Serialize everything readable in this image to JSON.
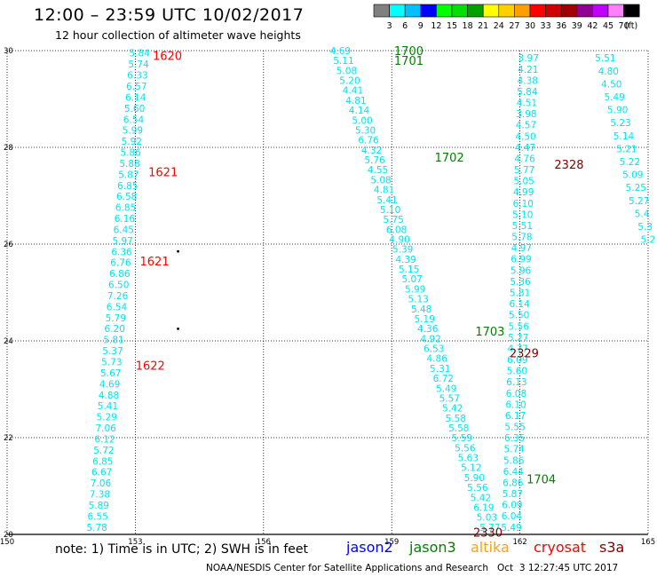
{
  "title": "12:00 – 23:59 UTC 10/02/2017",
  "subtitle": "12 hour collection of altimeter wave heights",
  "note": "note: 1) Time is in UTC; 2) SWH is in feet",
  "credit": "NOAA/NESDIS Center for Satellite Applications and Research   Oct  3 12:27:45 UTC 2017",
  "satellites": [
    {
      "name": "jason2",
      "color": "#0000ff"
    },
    {
      "name": "jason3",
      "color": "#008000"
    },
    {
      "name": "altika",
      "color": "#ffa500"
    },
    {
      "name": "cryosat",
      "color": "#ff0000"
    },
    {
      "name": "s3a",
      "color": "#800000"
    }
  ],
  "color_scale": {
    "unit": "(ft)",
    "labels": [
      "3",
      "6",
      "9",
      "12",
      "15",
      "18",
      "21",
      "24",
      "27",
      "30",
      "33",
      "36",
      "39",
      "42",
      "45",
      "70"
    ],
    "colors": [
      "#808080",
      "#00ffff",
      "#00c0ff",
      "#0000ff",
      "#00ff00",
      "#00e000",
      "#00a000",
      "#ffff00",
      "#ffd000",
      "#ffa000",
      "#ff0000",
      "#d00000",
      "#a00000",
      "#900090",
      "#c000ff",
      "#ff80ff",
      "#000000"
    ]
  },
  "chart_data": {
    "type": "scatter",
    "x_range": [
      150,
      165
    ],
    "y_range": [
      20,
      30
    ],
    "x_ticks": [
      "150",
      "153",
      "156",
      "159",
      "162",
      "165"
    ],
    "y_ticks": [
      "30",
      "28",
      "26",
      "24",
      "22",
      "20"
    ],
    "grid": true,
    "text_color": "#00e5ee",
    "tracks": [
      {
        "values": [
          "5.84",
          "5.74",
          "6.33",
          "6.57",
          "6.14",
          "5.60",
          "6.54",
          "5.99",
          "5.92",
          "5.86",
          "5.88",
          "5.87",
          "6.85",
          "6.58",
          "6.85",
          "6.16",
          "6.45",
          "5.97",
          "6.36",
          "6.76",
          "6.86",
          "6.50",
          "7.26",
          "6.54",
          "5.79",
          "6.20",
          "5.81",
          "5.37",
          "5.73",
          "5.67",
          "4.69",
          "4.88",
          "5.41",
          "5.29",
          "7.06",
          "6.12",
          "5.72",
          "6.85",
          "6.67",
          "7.06",
          "7.38",
          "5.89",
          "6.55",
          "5.78"
        ],
        "x_top": 153.1,
        "x_bottom": 152.1,
        "y_top": 29.95,
        "y_bottom": 20.15
      },
      {
        "values": [
          "4.69",
          "5.11",
          "5.08",
          "5.20",
          "4.41",
          "4.81",
          "4.14",
          "5.00",
          "5.30",
          "6.76",
          "4.32",
          "5.76",
          "4.55",
          "5.08",
          "4.81",
          "5.41",
          "5.10",
          "5.75",
          "6.08",
          "4.90",
          "5.39",
          "4.39",
          "5.15",
          "5.07",
          "5.99",
          "5.13",
          "5.48",
          "5.19",
          "4.36",
          "4.92",
          "6.53",
          "4.86",
          "5.31",
          "6.72",
          "5.49",
          "5.57",
          "5.42",
          "5.58",
          "5.58",
          "5.59",
          "5.56",
          "5.63",
          "5.12",
          "5.90",
          "5.56",
          "5.42",
          "6.19",
          "5.03",
          "5.77"
        ],
        "x_top": 157.8,
        "x_bottom": 161.3,
        "y_top": 30.0,
        "y_bottom": 20.15
      },
      {
        "values": [
          "3.97",
          "4.21",
          "4.38",
          "5.84",
          "4.51",
          "3.98",
          "4.57",
          "4.50",
          "4.47",
          "4.76",
          "5.77",
          "5.05",
          "4.99",
          "6.10",
          "5.10",
          "5.51",
          "5.78",
          "4.97",
          "6.99",
          "5.96",
          "5.36",
          "5.81",
          "6.14",
          "5.50",
          "5.56",
          "5.27",
          "4.77",
          "6.09",
          "5.60",
          "6.13",
          "6.08",
          "6.10",
          "6.17",
          "5.55",
          "6.35",
          "5.74",
          "5.86",
          "6.44",
          "6.86",
          "5.87",
          "6.09",
          "6.04",
          "5.49"
        ],
        "x_top": 162.2,
        "x_bottom": 161.8,
        "y_top": 29.85,
        "y_bottom": 20.15
      },
      {
        "values": [
          "5.51",
          "4.80",
          "4.50",
          "5.49",
          "5.90",
          "5.23",
          "5.14",
          "5.21",
          "5.22",
          "5.09",
          "5.25",
          "5.27",
          "5.4",
          "5.3",
          "5.2"
        ],
        "x_top": 164.0,
        "x_bottom": 165.0,
        "y_top": 29.85,
        "y_bottom": 26.1
      }
    ],
    "time_labels": [
      {
        "text": "1620",
        "x": 153.75,
        "y": 29.9,
        "color": "#ff0000"
      },
      {
        "text": "1621",
        "x": 153.65,
        "y": 27.5,
        "color": "#ff0000"
      },
      {
        "text": "1621",
        "x": 153.45,
        "y": 25.65,
        "color": "#ff0000"
      },
      {
        "text": "1622",
        "x": 153.35,
        "y": 23.5,
        "color": "#ff0000"
      },
      {
        "text": "1700",
        "x": 159.4,
        "y": 30.0,
        "color": "#008000"
      },
      {
        "text": "1701",
        "x": 159.4,
        "y": 29.8,
        "color": "#008000"
      },
      {
        "text": "1702",
        "x": 160.35,
        "y": 27.8,
        "color": "#008000"
      },
      {
        "text": "1703",
        "x": 161.3,
        "y": 24.2,
        "color": "#008000"
      },
      {
        "text": "1704",
        "x": 162.5,
        "y": 21.15,
        "color": "#008000"
      },
      {
        "text": "2328",
        "x": 163.15,
        "y": 27.65,
        "color": "#800000"
      },
      {
        "text": "2329",
        "x": 162.1,
        "y": 23.75,
        "color": "#800000"
      },
      {
        "text": "2330",
        "x": 161.25,
        "y": 20.05,
        "color": "#800000"
      }
    ],
    "markers": [
      {
        "x": 154.0,
        "y": 25.85
      },
      {
        "x": 154.0,
        "y": 24.25
      }
    ]
  }
}
